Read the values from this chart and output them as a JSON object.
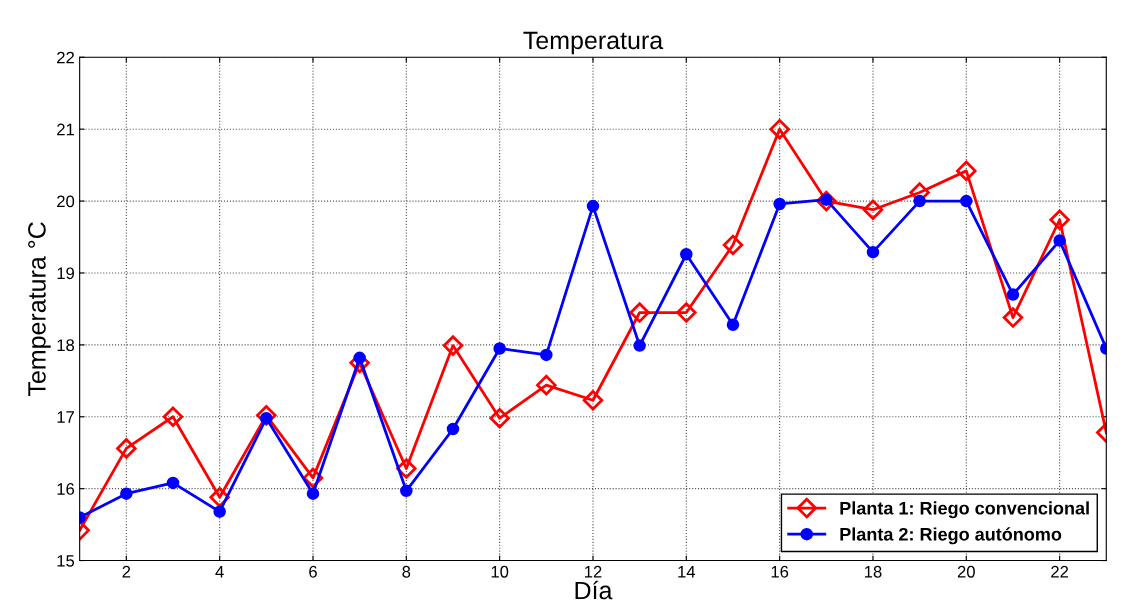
{
  "chart_data": {
    "type": "line",
    "title": "Temperatura",
    "xlabel": "Día",
    "ylabel": "Temperatura °C",
    "x": [
      1,
      2,
      3,
      4,
      5,
      6,
      7,
      8,
      9,
      10,
      11,
      12,
      13,
      14,
      15,
      16,
      17,
      18,
      19,
      20,
      21,
      22,
      23
    ],
    "series": [
      {
        "name": "Planta 1: Riego convencional",
        "color": "#ff0000",
        "marker": "diamond",
        "values": [
          15.42,
          16.56,
          17.0,
          15.88,
          17.02,
          16.15,
          17.75,
          16.28,
          17.99,
          16.98,
          17.44,
          17.23,
          18.45,
          18.45,
          19.39,
          21.0,
          20.0,
          19.88,
          20.12,
          20.42,
          18.38,
          19.74,
          16.78
        ]
      },
      {
        "name": "Planta 2: Riego autónomo",
        "color": "#0000ff",
        "marker": "circle",
        "values": [
          15.6,
          15.93,
          16.08,
          15.68,
          16.98,
          15.93,
          17.82,
          15.97,
          16.83,
          17.95,
          17.86,
          19.93,
          17.99,
          19.26,
          18.28,
          19.96,
          20.02,
          19.29,
          20.0,
          20.0,
          18.7,
          19.45,
          17.95
        ]
      }
    ],
    "xlim": [
      1,
      23
    ],
    "xticks": [
      2,
      4,
      6,
      8,
      10,
      12,
      14,
      16,
      18,
      20,
      22
    ],
    "ylim": [
      15,
      22
    ],
    "yticks": [
      15,
      16,
      17,
      18,
      19,
      20,
      21,
      22
    ],
    "grid": true,
    "legend": "bottom right",
    "line_style": "solid"
  }
}
